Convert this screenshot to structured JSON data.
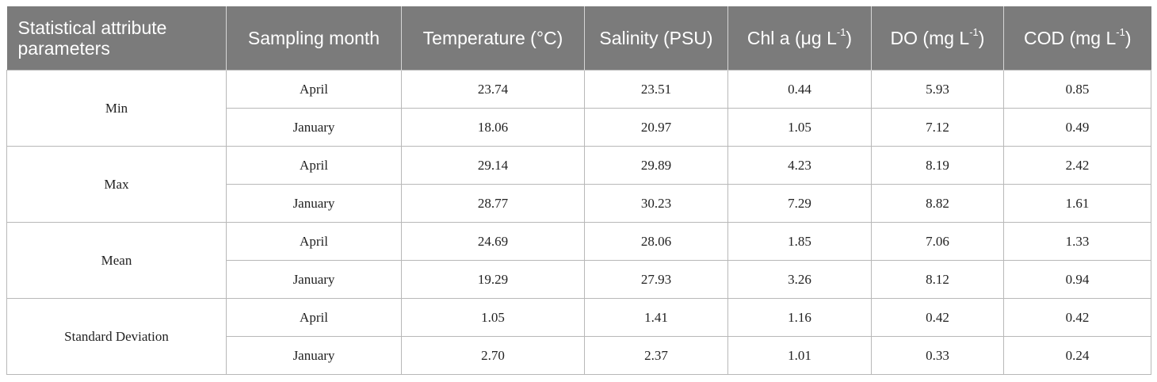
{
  "table": {
    "headers": {
      "col1": "Statistical attribute parameters",
      "col2": "Sampling month",
      "col3": "Temperature (°C)",
      "col4": "Salinity (PSU)",
      "col5_base": "Chl a (μg L",
      "col5_sup": "-1",
      "col5_close": ")",
      "col6_base": "DO (mg L",
      "col6_sup": "-1",
      "col6_close": ")",
      "col7_base": "COD (mg L",
      "col7_sup": "-1",
      "col7_close": ")"
    },
    "groups": [
      {
        "parameter": "Min",
        "rows": [
          {
            "month": "April",
            "temperature": "23.74",
            "salinity": "23.51",
            "chla": "0.44",
            "do": "5.93",
            "cod": "0.85"
          },
          {
            "month": "January",
            "temperature": "18.06",
            "salinity": "20.97",
            "chla": "1.05",
            "do": "7.12",
            "cod": "0.49"
          }
        ]
      },
      {
        "parameter": "Max",
        "rows": [
          {
            "month": "April",
            "temperature": "29.14",
            "salinity": "29.89",
            "chla": "4.23",
            "do": "8.19",
            "cod": "2.42"
          },
          {
            "month": "January",
            "temperature": "28.77",
            "salinity": "30.23",
            "chla": "7.29",
            "do": "8.82",
            "cod": "1.61"
          }
        ]
      },
      {
        "parameter": "Mean",
        "rows": [
          {
            "month": "April",
            "temperature": "24.69",
            "salinity": "28.06",
            "chla": "1.85",
            "do": "7.06",
            "cod": "1.33"
          },
          {
            "month": "January",
            "temperature": "19.29",
            "salinity": "27.93",
            "chla": "3.26",
            "do": "8.12",
            "cod": "0.94"
          }
        ]
      },
      {
        "parameter": "Standard Deviation",
        "rows": [
          {
            "month": "April",
            "temperature": "1.05",
            "salinity": "1.41",
            "chla": "1.16",
            "do": "0.42",
            "cod": "0.42"
          },
          {
            "month": "January",
            "temperature": "2.70",
            "salinity": "2.37",
            "chla": "1.01",
            "do": "0.33",
            "cod": "0.24"
          }
        ]
      }
    ]
  }
}
